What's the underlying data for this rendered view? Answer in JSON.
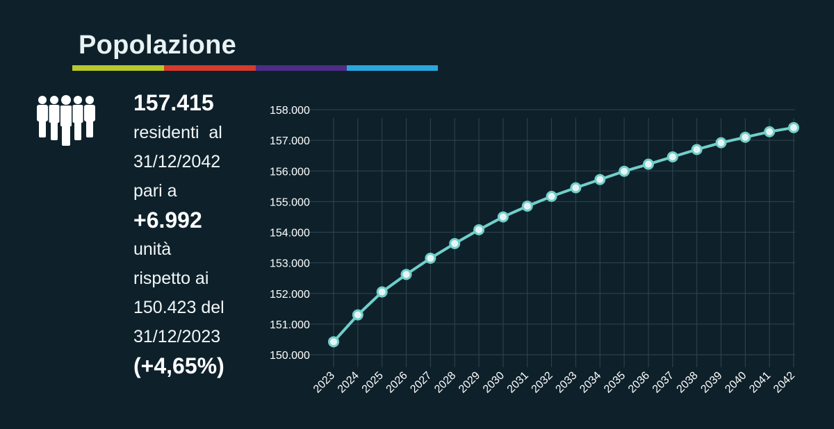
{
  "header": {
    "title": "Popolazione",
    "stripe_colors": [
      "#b7c82b",
      "#d63a2c",
      "#4d2d86",
      "#2aa6de"
    ]
  },
  "summary": {
    "icon": "people-group-icon",
    "total": "157.415",
    "line1": "residenti  al",
    "line2": "31/12/2042",
    "line3": "pari a",
    "delta": "+6.992",
    "line4": "unità",
    "line5": "rispetto ai",
    "line6": "150.423 del",
    "line7": "31/12/2023",
    "percent": "(+4,65%)"
  },
  "chart_data": {
    "type": "line",
    "x": [
      "2023",
      "2024",
      "2025",
      "2026",
      "2027",
      "2028",
      "2029",
      "2030",
      "2031",
      "2032",
      "2033",
      "2034",
      "2035",
      "2036",
      "2037",
      "2038",
      "2039",
      "2040",
      "2041",
      "2042"
    ],
    "series": [
      {
        "values": [
          150423,
          151300,
          152050,
          152620,
          153150,
          153630,
          154080,
          154500,
          154850,
          155170,
          155450,
          155720,
          155990,
          156220,
          156460,
          156700,
          156920,
          157100,
          157280,
          157415
        ]
      }
    ],
    "ylim": [
      150000,
      158000
    ],
    "yticks": [
      150000,
      151000,
      152000,
      153000,
      154000,
      155000,
      156000,
      157000,
      158000
    ],
    "ytick_labels": [
      "150.000",
      "151.000",
      "152.000",
      "153.000",
      "154.000",
      "155.000",
      "156.000",
      "157.000",
      "158.000"
    ],
    "grid": true,
    "line_color": "#71cfca",
    "marker_fill": "#e7f4f4",
    "grid_color": "#2f4650"
  }
}
